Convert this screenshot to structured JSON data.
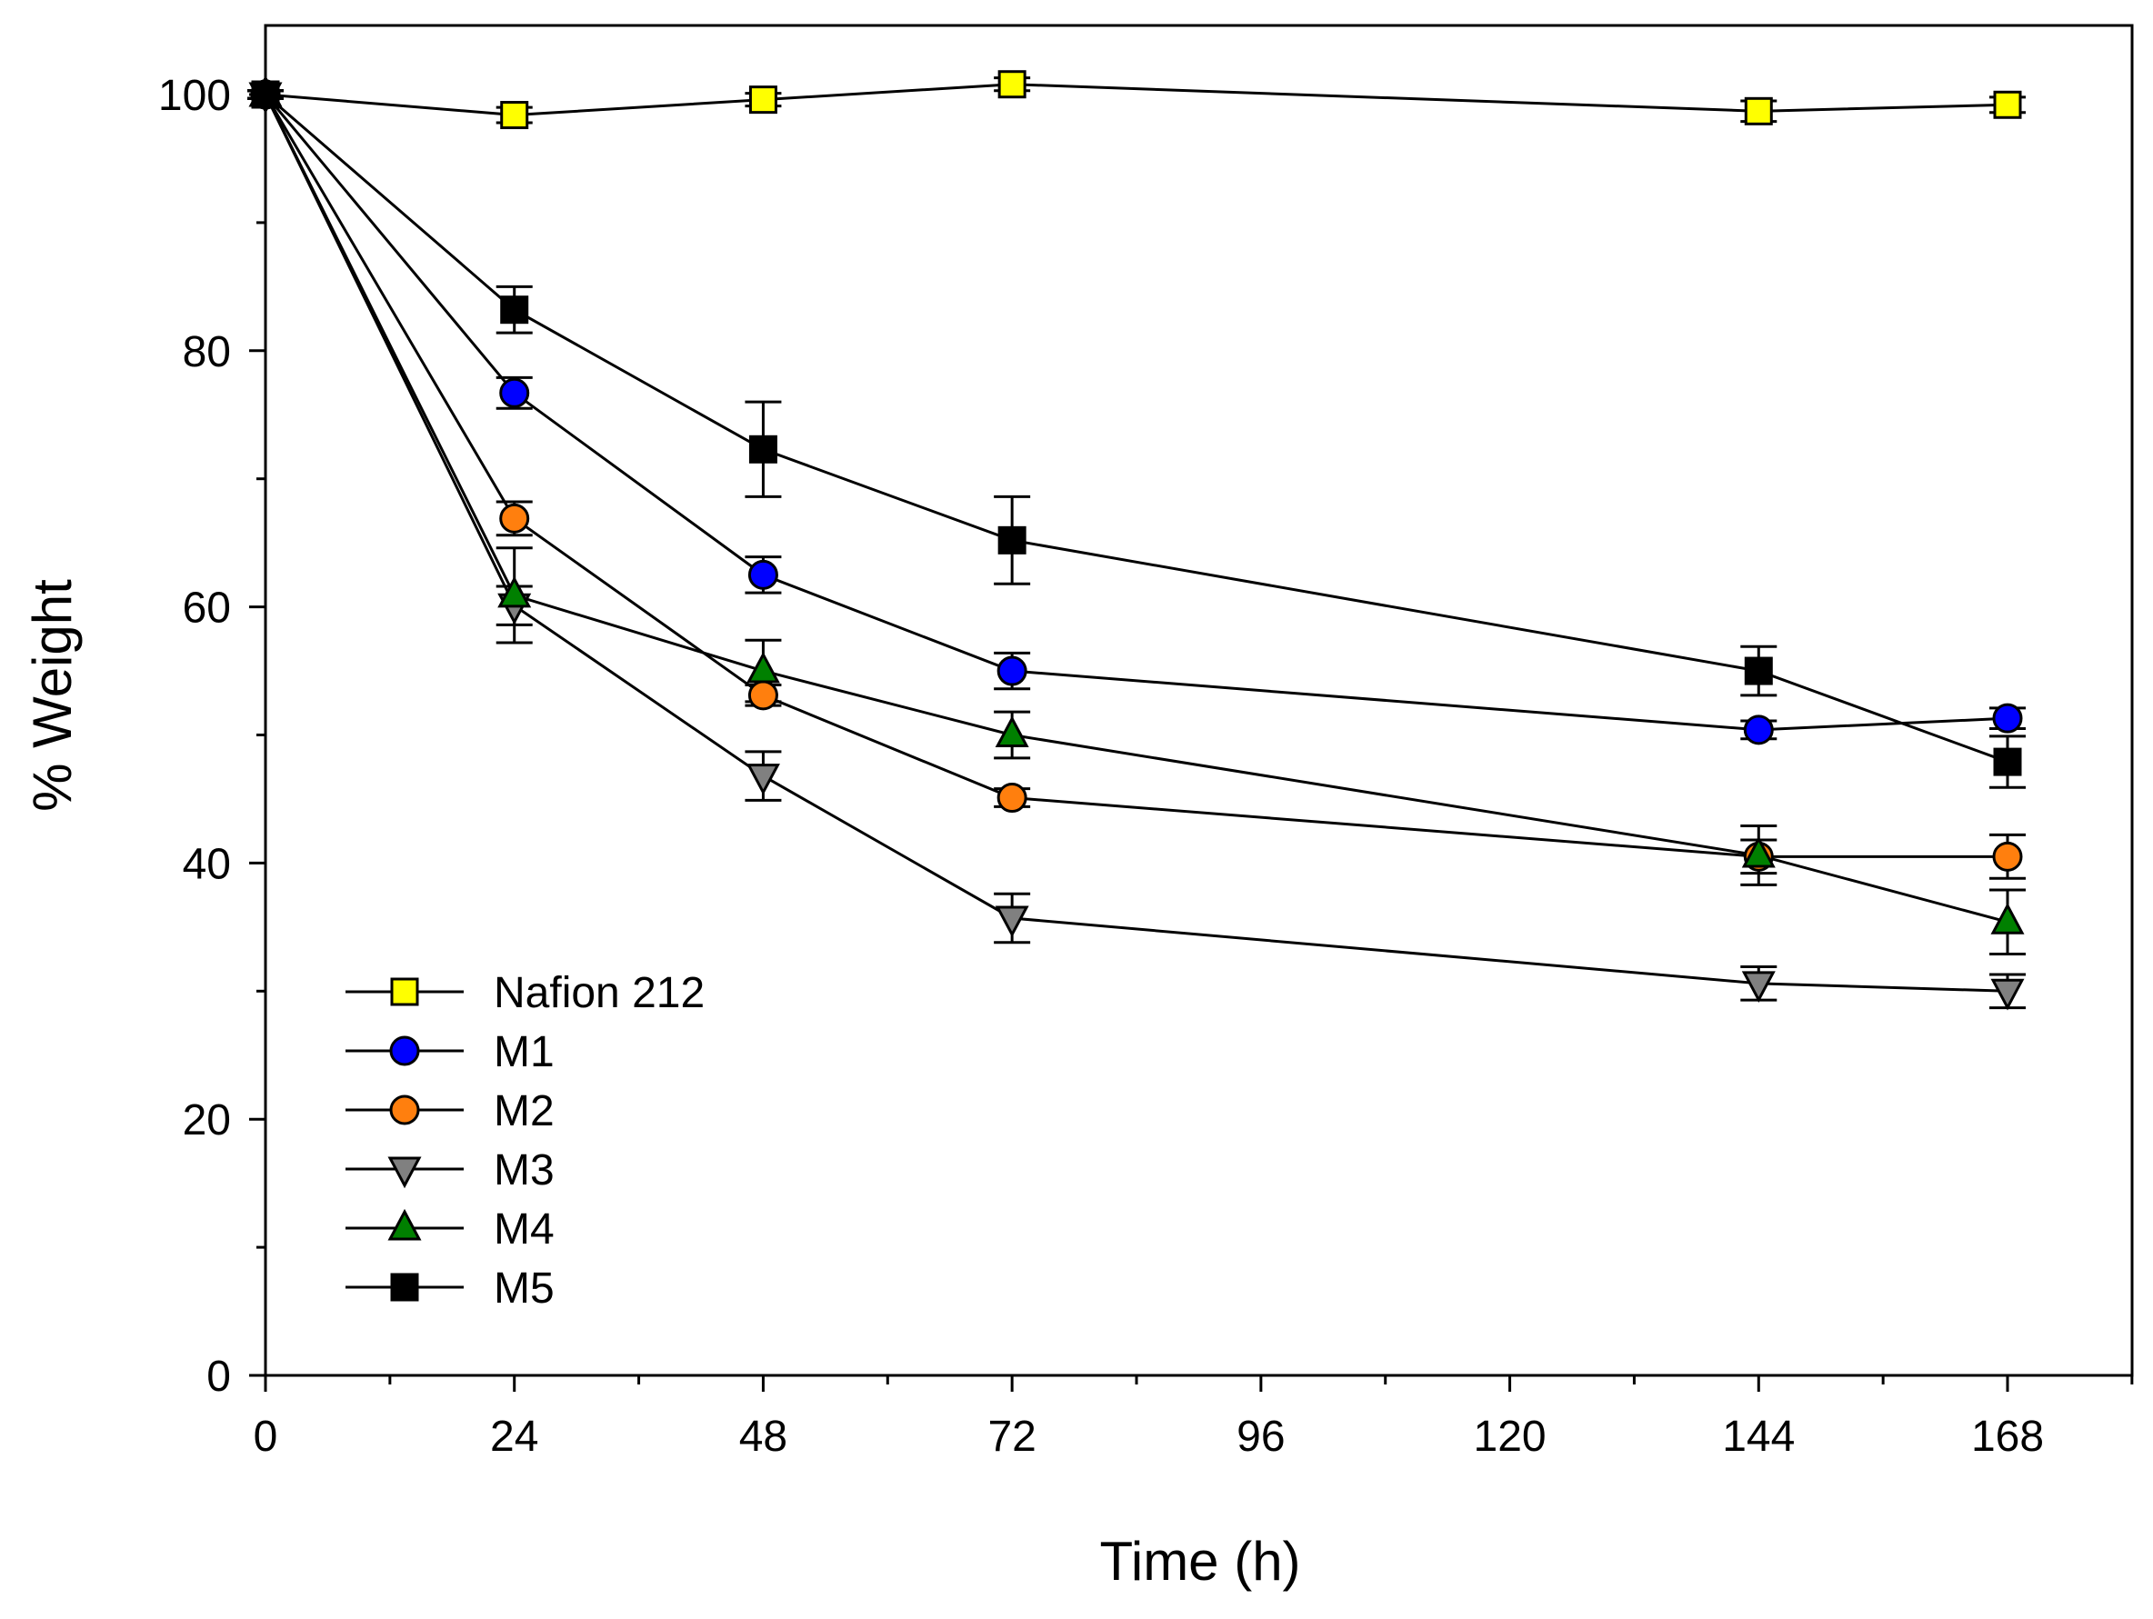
{
  "chart_data": {
    "type": "line",
    "title": "",
    "xlabel": "Time (h)",
    "ylabel": "% Weight",
    "xlim": [
      0,
      180
    ],
    "ylim": [
      0,
      105
    ],
    "xticks": [
      0,
      24,
      48,
      72,
      96,
      120,
      144,
      168
    ],
    "yticks": [
      0,
      20,
      40,
      60,
      80,
      100
    ],
    "x_tick_labels": [
      "0",
      "24",
      "48",
      "72",
      "96",
      "120",
      "144",
      "168"
    ],
    "y_tick_labels": [
      "0",
      "20",
      "40",
      "60",
      "80",
      "100"
    ],
    "x_minor_ticks": [
      12,
      36,
      60,
      84,
      108,
      132,
      156,
      180
    ],
    "y_minor_ticks": [
      10,
      30,
      50,
      70,
      90
    ],
    "grid": false,
    "legend_position": "bottom-left",
    "x": [
      0,
      24,
      48,
      72,
      144,
      168
    ],
    "series": [
      {
        "name": "Nafion 212",
        "marker": "square",
        "color": "#ffff00",
        "values": [
          100,
          98.4,
          99.6,
          100.8,
          98.7,
          99.2
        ],
        "errors": [
          0.3,
          0.6,
          0.5,
          0.5,
          0.8,
          0.6
        ]
      },
      {
        "name": "M1",
        "marker": "circle",
        "color": "#0000ff",
        "values": [
          100,
          76.7,
          62.5,
          55.0,
          50.4,
          51.3
        ],
        "errors": [
          0.3,
          1.2,
          1.4,
          1.4,
          0.7,
          0.8
        ]
      },
      {
        "name": "M2",
        "marker": "circle",
        "color": "#ff7f0e",
        "values": [
          100,
          66.9,
          53.1,
          45.1,
          40.5,
          40.5
        ],
        "errors": [
          0.3,
          1.3,
          0.8,
          0.7,
          1.3,
          1.7
        ]
      },
      {
        "name": "M3",
        "marker": "triangle-down",
        "color": "#808080",
        "values": [
          100,
          60.1,
          46.8,
          35.7,
          30.6,
          30.0
        ],
        "errors": [
          0.3,
          1.5,
          1.9,
          1.9,
          1.3,
          1.3
        ]
      },
      {
        "name": "M4",
        "marker": "triangle-up",
        "color": "#008000",
        "values": [
          100,
          60.9,
          55.0,
          50.0,
          40.6,
          35.4
        ],
        "errors": [
          0.3,
          3.7,
          2.4,
          1.8,
          2.3,
          2.5
        ]
      },
      {
        "name": "M5",
        "marker": "square",
        "color": "#000000",
        "values": [
          100,
          83.2,
          72.3,
          65.2,
          55.0,
          47.9
        ],
        "errors": [
          0.3,
          1.8,
          3.7,
          3.4,
          1.9,
          2.0
        ]
      }
    ]
  }
}
